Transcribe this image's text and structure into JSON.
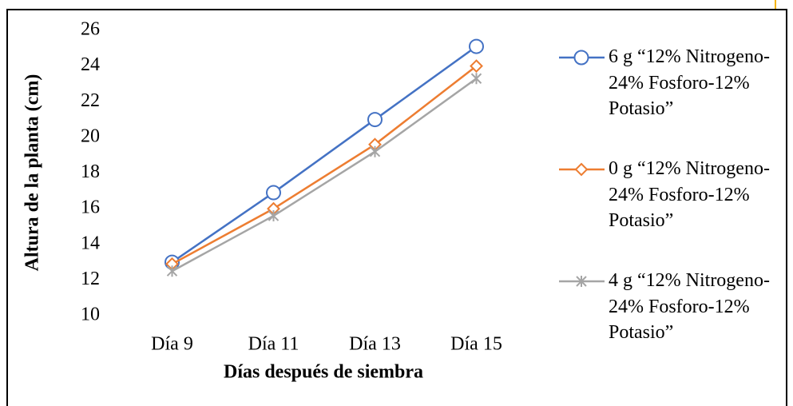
{
  "chart_data": {
    "type": "line",
    "x_label": "Días después de siembra",
    "y_label": "Altura de la planta (cm)",
    "categories": [
      "Día 9",
      "Día 11",
      "Día 13",
      "Día 15"
    ],
    "series": [
      {
        "name": "6 g “12% Nitrogeno-24% Fosforo-12% Potasio”",
        "color": "#4472c4",
        "marker": "circle",
        "values": [
          13.0,
          16.9,
          21.0,
          25.1
        ]
      },
      {
        "name": "0 g “12% Nitrogeno-24% Fosforo-12% Potasio”",
        "color": "#ed7d31",
        "marker": "diamond",
        "values": [
          12.9,
          16.0,
          19.6,
          24.0
        ]
      },
      {
        "name": "4 g “12% Nitrogeno-24% Fosforo-12% Potasio”",
        "color": "#a5a5a5",
        "marker": "star",
        "values": [
          12.5,
          15.6,
          19.2,
          23.3
        ]
      }
    ],
    "ylim": [
      10,
      26
    ],
    "yticks": [
      10,
      12,
      14,
      16,
      18,
      20,
      22,
      24,
      26
    ],
    "grid": false,
    "legend": "right"
  }
}
